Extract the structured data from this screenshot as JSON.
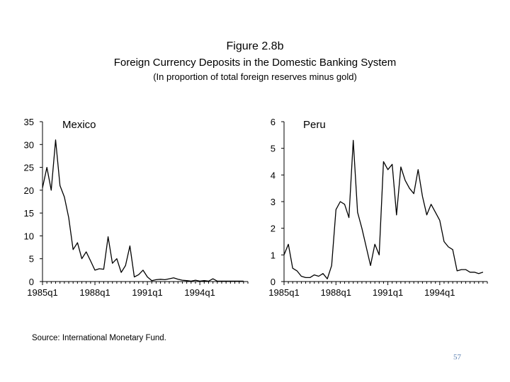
{
  "figure": {
    "title": "Figure 2.8b",
    "subtitle": "Foreign Currency Deposits in the Domestic Banking System",
    "note": "(In proportion of total foreign reserves minus gold)"
  },
  "source": "Source: International Monetary Fund.",
  "page_number": "57",
  "chart_data": [
    {
      "type": "line",
      "title": "Mexico",
      "xlabel": "",
      "ylabel": "",
      "ylim": [
        0,
        35
      ],
      "yticks": [
        0,
        5,
        10,
        15,
        20,
        25,
        30,
        35
      ],
      "xlim": [
        0,
        47
      ],
      "xtick_positions": [
        0,
        12,
        24,
        36
      ],
      "xtick_labels": [
        "1985q1",
        "1988q1",
        "1991q1",
        "1994q1"
      ],
      "series": [
        {
          "name": "Mexico",
          "values": [
            20.5,
            25,
            20,
            31,
            21,
            18.5,
            14,
            7,
            8.5,
            5,
            6.5,
            4.5,
            2.5,
            2.8,
            2.7,
            9.8,
            4,
            5,
            2,
            3.5,
            7.8,
            1,
            1.5,
            2.5,
            1,
            0.2,
            0.4,
            0.5,
            0.4,
            0.6,
            0.8,
            0.5,
            0.3,
            0.2,
            0.1,
            0.3,
            0.1,
            0.2,
            0.1,
            0.6,
            0.1,
            0.1,
            0.1,
            0.1,
            0.1,
            0.1,
            0.1
          ]
        }
      ]
    },
    {
      "type": "line",
      "title": "Peru",
      "xlabel": "",
      "ylabel": "",
      "ylim": [
        0,
        6
      ],
      "yticks": [
        0,
        1,
        2,
        3,
        4,
        5,
        6
      ],
      "xlim": [
        0,
        47
      ],
      "xtick_positions": [
        0,
        12,
        24,
        36
      ],
      "xtick_labels": [
        "1985q1",
        "1988q1",
        "1991q1",
        "1994q1"
      ],
      "series": [
        {
          "name": "Peru",
          "values": [
            1,
            1.4,
            0.5,
            0.4,
            0.2,
            0.15,
            0.15,
            0.25,
            0.2,
            0.3,
            0.1,
            0.6,
            2.7,
            3,
            2.9,
            2.4,
            5.3,
            2.6,
            2,
            1.3,
            0.6,
            1.4,
            1,
            4.5,
            4.2,
            4.4,
            2.5,
            4.3,
            3.8,
            3.5,
            3.3,
            4.2,
            3.2,
            2.5,
            2.9,
            2.6,
            2.3,
            1.5,
            1.3,
            1.2,
            0.4,
            0.45,
            0.45,
            0.35,
            0.35,
            0.3,
            0.35
          ]
        }
      ]
    }
  ]
}
